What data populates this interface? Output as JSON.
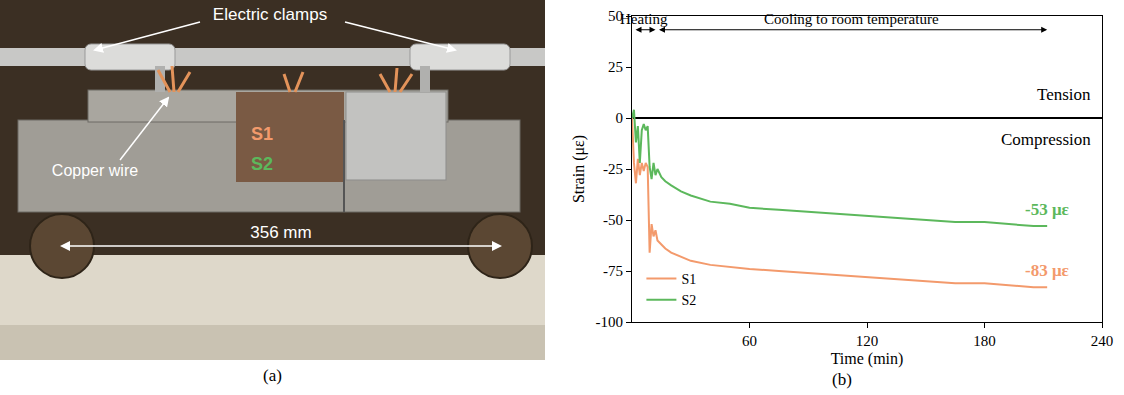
{
  "panel_a": {
    "caption": "(a)",
    "clamps_label": "Electric clamps",
    "wire_label": "Copper wire",
    "gauge_1": "S1",
    "gauge_2": "S2",
    "span_label": "356 mm"
  },
  "chart_data": {
    "type": "line",
    "caption": "(b)",
    "x_label": "Time (min)",
    "y_label": "Strain (με)",
    "x": [
      0,
      1,
      2,
      3,
      4,
      5,
      6,
      7,
      8,
      9,
      10,
      11,
      12,
      13,
      15,
      17,
      20,
      25,
      30,
      40,
      50,
      60,
      75,
      90,
      105,
      120,
      135,
      150,
      165,
      180,
      195,
      205,
      212
    ],
    "series": [
      {
        "name": "S1",
        "color": "#f39a6c",
        "end_label": "-83 με",
        "values": [
          0,
          -22,
          -32,
          -20,
          -28,
          -22,
          -26,
          -22,
          -24,
          -66,
          -52,
          -58,
          -55,
          -60,
          -62,
          -64,
          -66,
          -68,
          -70,
          -72,
          -73,
          -74,
          -75,
          -76,
          -77,
          -78,
          -79,
          -80,
          -81,
          -81,
          -82,
          -83,
          -83
        ]
      },
      {
        "name": "S2",
        "color": "#5cb85c",
        "end_label": "-53 με",
        "values": [
          0,
          4,
          -12,
          -4,
          -22,
          -6,
          -3,
          -6,
          -4,
          -24,
          -30,
          -22,
          -28,
          -25,
          -29,
          -31,
          -33,
          -36,
          -38,
          -41,
          -42,
          -44,
          -45,
          -46,
          -47,
          -48,
          -49,
          -50,
          -51,
          -51,
          -52,
          -53,
          -53
        ]
      }
    ],
    "xlim": [
      0,
      240
    ],
    "xticks": [
      60,
      120,
      180,
      240
    ],
    "ylim": [
      -100,
      50
    ],
    "yticks": [
      -100,
      -75,
      -50,
      -25,
      0,
      25,
      50
    ],
    "grid": false,
    "legend": "lower left",
    "phases": [
      {
        "label": "Heating",
        "start": 0,
        "end": 12
      },
      {
        "label": "Cooling to room temperature",
        "start": 12,
        "end": 212
      }
    ],
    "region_labels": {
      "above_zero": "Tension",
      "below_zero": "Compression"
    }
  }
}
